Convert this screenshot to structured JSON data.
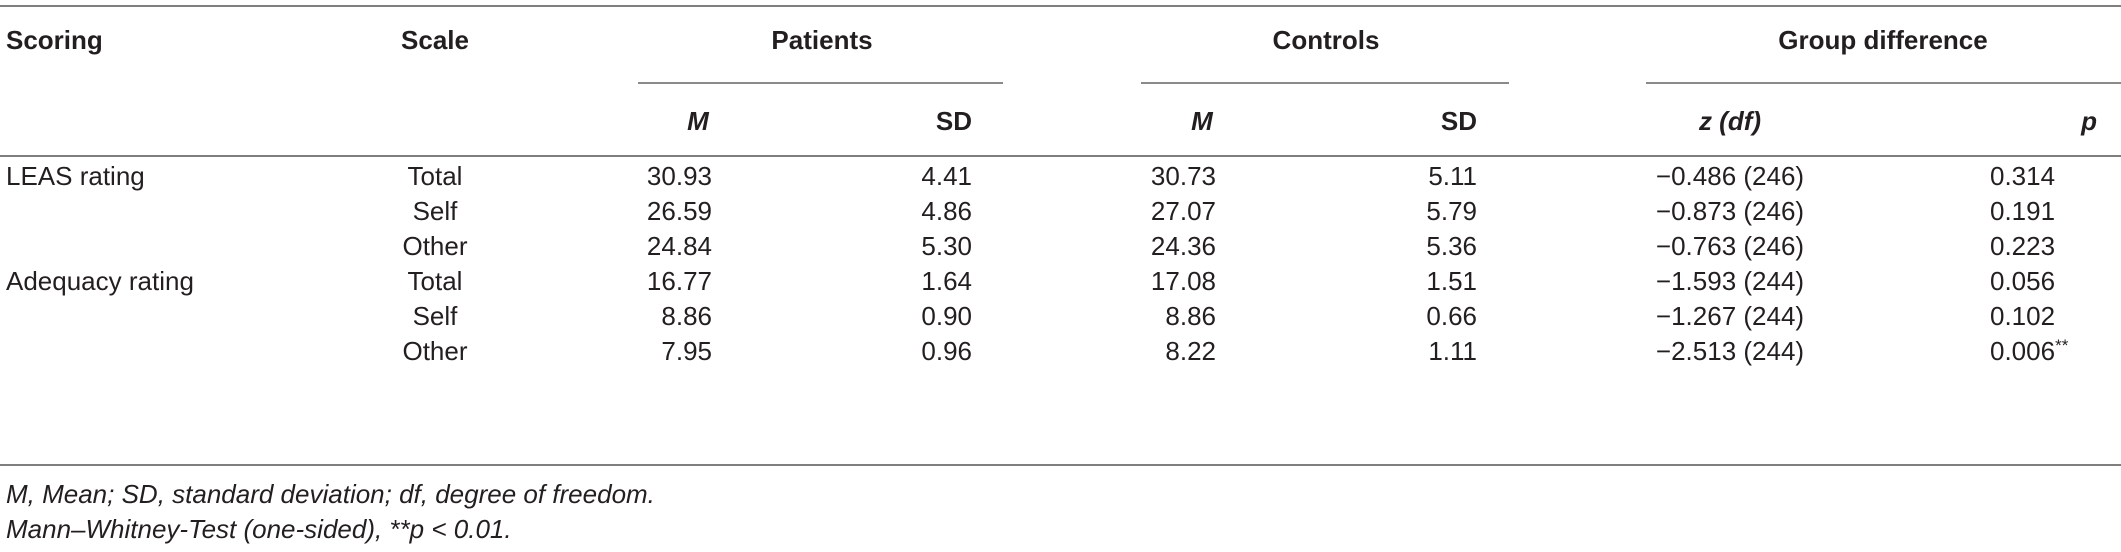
{
  "headers": {
    "scoring": "Scoring",
    "scale": "Scale",
    "patients": "Patients",
    "controls": "Controls",
    "group_difference": "Group difference",
    "m": "M",
    "sd": "SD",
    "z_df": "z (df)",
    "p": "p"
  },
  "rows": [
    {
      "scoring": "LEAS rating",
      "scale": "Total",
      "pm": "30.93",
      "psd": "4.41",
      "cm": "30.73",
      "csd": "5.11",
      "z": "−0.486 (246)",
      "p": "0.314",
      "sig": ""
    },
    {
      "scoring": "",
      "scale": "Self",
      "pm": "26.59",
      "psd": "4.86",
      "cm": "27.07",
      "csd": "5.79",
      "z": "−0.873 (246)",
      "p": "0.191",
      "sig": ""
    },
    {
      "scoring": "",
      "scale": "Other",
      "pm": "24.84",
      "psd": "5.30",
      "cm": "24.36",
      "csd": "5.36",
      "z": "−0.763 (246)",
      "p": "0.223",
      "sig": ""
    },
    {
      "scoring": "Adequacy rating",
      "scale": "Total",
      "pm": "16.77",
      "psd": "1.64",
      "cm": "17.08",
      "csd": "1.51",
      "z": "−1.593 (244)",
      "p": "0.056",
      "sig": ""
    },
    {
      "scoring": "",
      "scale": "Self",
      "pm": "8.86",
      "psd": "0.90",
      "cm": "8.86",
      "csd": "0.66",
      "z": "−1.267 (244)",
      "p": "0.102",
      "sig": ""
    },
    {
      "scoring": "",
      "scale": "Other",
      "pm": "7.95",
      "psd": "0.96",
      "cm": "8.22",
      "csd": "1.11",
      "z": "−2.513 (244)",
      "p": "0.006",
      "sig": "**"
    }
  ],
  "footnotes": {
    "line1": "M, Mean; SD, standard deviation; df, degree of freedom.",
    "line2": "Mann–Whitney-Test (one-sided), **p < 0.01."
  }
}
